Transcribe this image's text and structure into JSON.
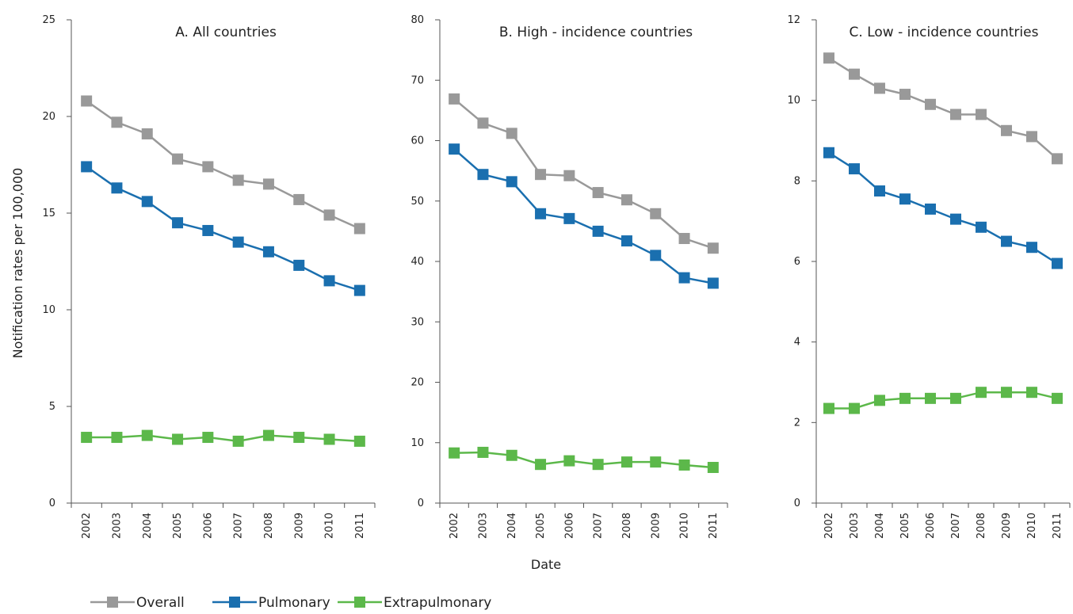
{
  "ylabel": "Notification rates per 100,000",
  "xlabel": "Date",
  "legend": [
    {
      "label": "Overall",
      "color": "#999999"
    },
    {
      "label": "Pulmonary",
      "color": "#1a6faf"
    },
    {
      "label": "Extrapulmonary",
      "color": "#5cb84a"
    }
  ],
  "chart_data": [
    {
      "type": "line",
      "title": "A. All countries",
      "x": [
        "2002",
        "2003",
        "2004",
        "2005",
        "2006",
        "2007",
        "2008",
        "2009",
        "2010",
        "2011"
      ],
      "ylim": [
        0,
        25
      ],
      "yticks": [
        "0",
        "5",
        "10",
        "15",
        "20",
        "25"
      ],
      "series": [
        {
          "name": "Overall",
          "values": [
            20.8,
            19.7,
            19.1,
            17.8,
            17.4,
            16.7,
            16.5,
            15.7,
            14.9,
            14.2
          ]
        },
        {
          "name": "Pulmonary",
          "values": [
            17.4,
            16.3,
            15.6,
            14.5,
            14.1,
            13.5,
            13.0,
            12.3,
            11.5,
            11.0
          ]
        },
        {
          "name": "Extrapulmonary",
          "values": [
            3.4,
            3.4,
            3.5,
            3.3,
            3.4,
            3.2,
            3.5,
            3.4,
            3.3,
            3.2
          ]
        }
      ]
    },
    {
      "type": "line",
      "title": "B. High - incidence countries",
      "x": [
        "2002",
        "2003",
        "2004",
        "2005",
        "2006",
        "2007",
        "2008",
        "2009",
        "2010",
        "2011"
      ],
      "ylim": [
        0,
        80
      ],
      "yticks": [
        "0",
        "10",
        "20",
        "30",
        "40",
        "50",
        "60",
        "70",
        "80"
      ],
      "series": [
        {
          "name": "Overall",
          "values": [
            66.9,
            62.9,
            61.2,
            54.4,
            54.2,
            51.4,
            50.2,
            47.9,
            43.8,
            42.2
          ]
        },
        {
          "name": "Pulmonary",
          "values": [
            58.6,
            54.4,
            53.2,
            47.9,
            47.1,
            45.0,
            43.4,
            41.0,
            37.3,
            36.4
          ]
        },
        {
          "name": "Extrapulmonary",
          "values": [
            8.3,
            8.4,
            7.9,
            6.4,
            7.0,
            6.4,
            6.8,
            6.8,
            6.3,
            5.9
          ]
        }
      ]
    },
    {
      "type": "line",
      "title": "C. Low - incidence countries",
      "x": [
        "2002",
        "2003",
        "2004",
        "2005",
        "2006",
        "2007",
        "2008",
        "2009",
        "2010",
        "2011"
      ],
      "ylim": [
        0,
        12
      ],
      "yticks": [
        "0",
        "2",
        "4",
        "6",
        "8",
        "10",
        "12"
      ],
      "series": [
        {
          "name": "Overall",
          "values": [
            11.05,
            10.65,
            10.3,
            10.15,
            9.9,
            9.65,
            9.65,
            9.25,
            9.1,
            8.55
          ]
        },
        {
          "name": "Pulmonary",
          "values": [
            8.7,
            8.3,
            7.75,
            7.55,
            7.3,
            7.05,
            6.85,
            6.5,
            6.35,
            5.95
          ]
        },
        {
          "name": "Extrapulmonary",
          "values": [
            2.35,
            2.35,
            2.55,
            2.6,
            2.6,
            2.6,
            2.75,
            2.75,
            2.75,
            2.6
          ]
        }
      ]
    }
  ]
}
